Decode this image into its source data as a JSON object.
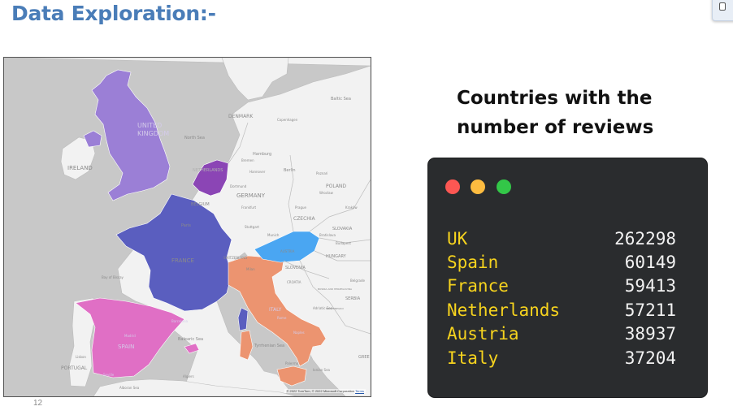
{
  "slide": {
    "title": "Data Exploration:-",
    "page_number": "12"
  },
  "map": {
    "labels": {
      "united_kingdom_1": "UNITED",
      "united_kingdom_2": "KINGDOM",
      "ireland": "IRELAND",
      "north_sea": "North Sea",
      "denmark": "DENMARK",
      "copenhagen": "Copenhagen",
      "baltic_sea": "Baltic Sea",
      "hamburg": "Hamburg",
      "bremen": "Bremen",
      "hannover": "Hannover",
      "berlin": "Berlin",
      "netherlands": "NETHERLANDS",
      "germany": "GERMANY",
      "dortmund": "Dortmund",
      "frankfurt": "Frankfurt",
      "poznan": "Poznań",
      "poland": "POLAND",
      "wroclaw": "Wrocław",
      "prague": "Prague",
      "czechia": "CZECHIA",
      "krakow": "Kraków",
      "stuttgart": "Stuttgart",
      "munich": "Munich",
      "slovakia": "SLOVAKIA",
      "bratislava": "Bratislava",
      "budapest": "Budapest",
      "hungary": "HUNGARY",
      "austria": "AUSTRIA",
      "belgium": "BELGIUM",
      "paris": "Paris",
      "france": "FRANCE",
      "bay_of_biscay": "Bay of Biscay",
      "switzerland": "SWITZERLAND",
      "slovenia": "SLOVENIA",
      "croatia": "CROATIA",
      "milan": "Milan",
      "bosnia": "BOSNIA AND HERZEGOVINA",
      "serbia": "SERBIA",
      "belgrade": "Belgrade",
      "adriatic_sea": "Adriatic Sea",
      "montenegro": "MONTENEGRO",
      "italy": "ITALY",
      "rome": "Rome",
      "naples": "Naples",
      "tyrrhenian_sea": "Tyrrhenian Sea",
      "palermo": "Palermo",
      "ionian_sea": "Ionian Sea",
      "spain": "SPAIN",
      "madrid": "Madrid",
      "barcelona": "Barcelona",
      "balearic_sea": "Balearic Sea",
      "portugal": "PORTUGAL",
      "lisbon": "Lisbon",
      "seville": "Seville",
      "algiers": "Algiers",
      "alboran_sea": "Alboran Sea",
      "greece": "GREE"
    },
    "copyright": "© 2022 TomTom, © 2022 Microsoft Corporation",
    "terms": "Terms",
    "colors": {
      "uk": "#9b7fd6",
      "netherlands": "#8b45b5",
      "france": "#5a5ebf",
      "spain": "#e06fc5",
      "italy": "#ec9470",
      "austria": "#4aa6f2",
      "land": "#f2f2f2",
      "water": "#c8c8c8"
    }
  },
  "panel": {
    "heading": "Countries with the number of reviews",
    "rows": [
      {
        "country": "UK",
        "count": "262298"
      },
      {
        "country": "Spain",
        "count": "60149"
      },
      {
        "country": "France",
        "count": "59413"
      },
      {
        "country": "Netherlands",
        "count": "57211"
      },
      {
        "country": "Austria",
        "count": "38937"
      },
      {
        "country": "Italy",
        "count": "37204"
      }
    ]
  }
}
